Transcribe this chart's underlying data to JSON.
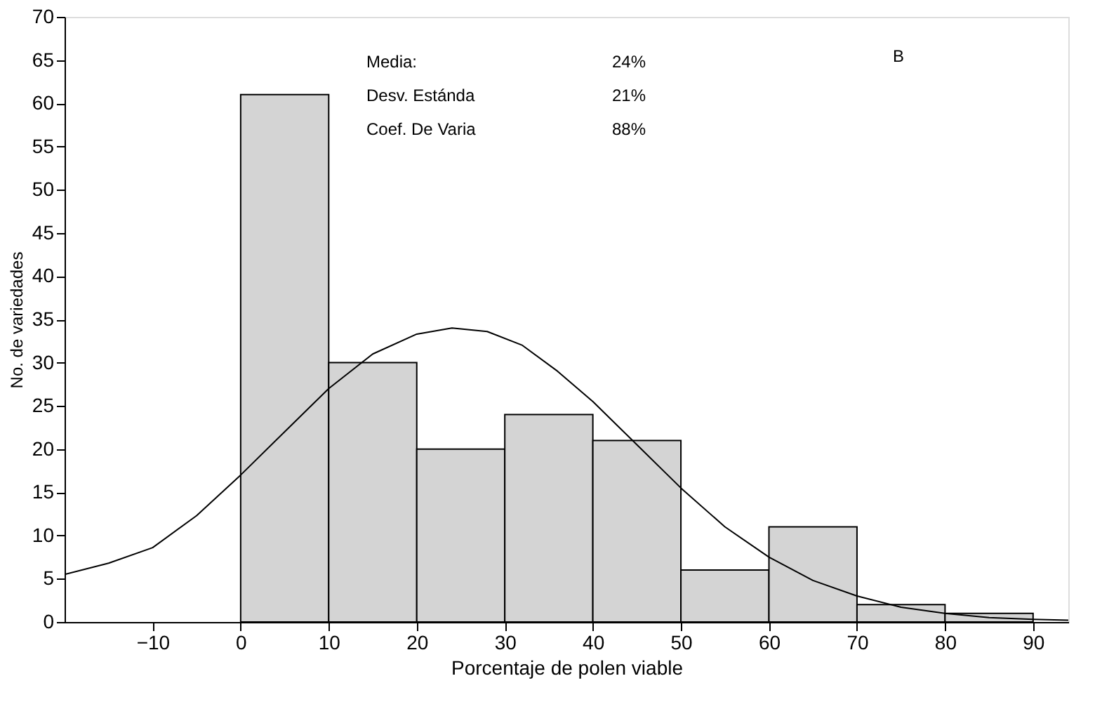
{
  "chart_data": {
    "type": "histogram",
    "xlabel": "Porcentaje de polen viable",
    "ylabel": "No. de variedades",
    "bins": [
      -10,
      0,
      10,
      20,
      30,
      40,
      50,
      60,
      70,
      80,
      90
    ],
    "values": [
      0,
      61,
      30,
      20,
      24,
      21,
      6,
      11,
      2,
      1
    ],
    "color": "#d4d4d4",
    "series": [
      {
        "type": "line",
        "color": "#000000",
        "x": [
          -20,
          -15,
          -10,
          -5,
          0,
          5,
          10,
          15,
          20,
          24,
          28,
          32,
          36,
          40,
          45,
          50,
          55,
          60,
          65,
          70,
          75,
          80,
          85,
          90,
          94
        ],
        "values": [
          5.5,
          6.8,
          8.6,
          12.3,
          17,
          22,
          27,
          31,
          33.3,
          34,
          33.6,
          32,
          29,
          25.5,
          20.5,
          15.5,
          11,
          7.5,
          4.8,
          3,
          1.7,
          1,
          0.5,
          0.3,
          0.2
        ]
      }
    ],
    "xlim": [
      -20,
      94
    ],
    "xticks": [
      -10,
      0,
      10,
      20,
      30,
      40,
      50,
      60,
      70,
      80,
      90
    ],
    "ylim": [
      0,
      70
    ],
    "yticks": [
      0,
      5,
      10,
      15,
      20,
      25,
      30,
      35,
      40,
      45,
      50,
      55,
      60,
      65,
      70
    ],
    "grid": false,
    "annotations": [
      "Media:",
      "24%",
      "Desv. Estánda",
      "21%",
      "Coef. De Varia",
      "88%",
      "B"
    ]
  }
}
